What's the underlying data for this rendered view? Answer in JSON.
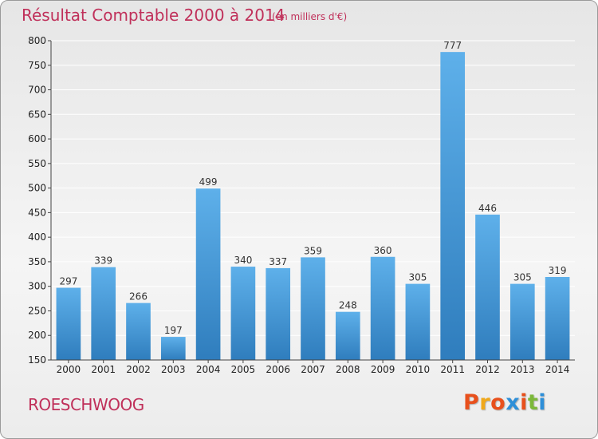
{
  "header": {
    "title": "Résultat Comptable 2000 à 2014",
    "unit": "(en milliers d'€)"
  },
  "footer": {
    "location": "ROESCHWOOG",
    "logo": "Proxiti",
    "logo_colors": [
      "#e8501c",
      "#f0a81a",
      "#e8501c",
      "#2e8fd8",
      "#e8501c",
      "#7cb83a",
      "#2e8fd8"
    ]
  },
  "colors": {
    "bar_top": "#5eb0ea",
    "bar_bottom": "#2f7dbd",
    "grid": "#ffffff",
    "axis": "#444444",
    "text_accent": "#c0305a"
  },
  "chart_data": {
    "type": "bar",
    "title": "Résultat Comptable 2000 à 2014",
    "subtitle": "(en milliers d'€)",
    "xlabel": "",
    "ylabel": "",
    "categories": [
      "2000",
      "2001",
      "2002",
      "2003",
      "2004",
      "2005",
      "2006",
      "2007",
      "2008",
      "2009",
      "2010",
      "2011",
      "2012",
      "2013",
      "2014"
    ],
    "values": [
      297,
      339,
      266,
      197,
      499,
      340,
      337,
      359,
      248,
      360,
      305,
      777,
      446,
      305,
      319
    ],
    "ylim": [
      150,
      800
    ],
    "yticks": [
      150,
      200,
      250,
      300,
      350,
      400,
      450,
      500,
      550,
      600,
      650,
      700,
      750,
      800
    ],
    "grid": true,
    "legend": "none"
  }
}
